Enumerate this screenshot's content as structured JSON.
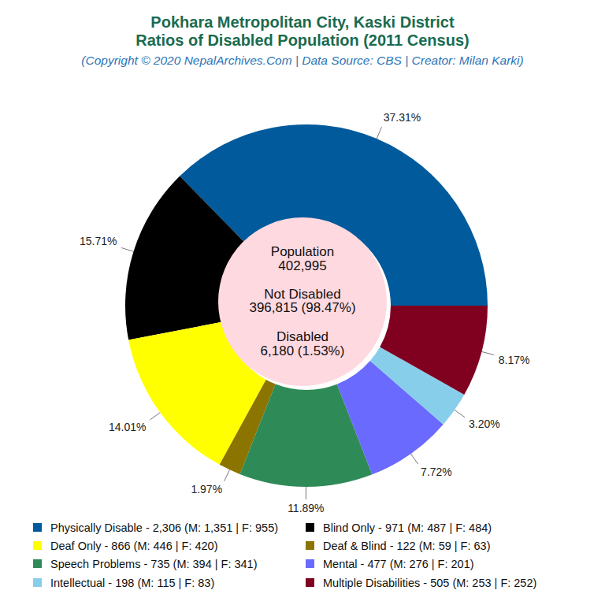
{
  "chart_data": {
    "type": "pie",
    "title": [
      "Pokhara Metropolitan City, Kaski District",
      "Ratios of Disabled Population (2011 Census)"
    ],
    "subtitle": "(Copyright © 2020 NepalArchives.Com | Data Source: CBS | Creator: Milan Karki)",
    "center_text": [
      "Population",
      "402,995",
      "Not Disabled",
      "396,815 (98.47%)",
      "Disabled",
      "6,180 (1.53%)"
    ],
    "categories": [
      "Physically Disable",
      "Blind Only",
      "Deaf Only",
      "Deaf & Blind",
      "Speech Problems",
      "Mental",
      "Intellectual",
      "Multiple Disabilities"
    ],
    "values": [
      37.31,
      15.71,
      14.01,
      1.97,
      11.89,
      7.72,
      3.2,
      8.17
    ],
    "value_labels": [
      "37.31%",
      "15.71%",
      "14.01%",
      "1.97%",
      "11.89%",
      "7.72%",
      "3.20%",
      "8.17%"
    ],
    "data_labels": true,
    "colors": [
      "#005a9c",
      "#000000",
      "#ffff00",
      "#8b7500",
      "#2e8b57",
      "#6a6aff",
      "#87ceeb",
      "#800020"
    ],
    "legend_labels": [
      "Physically Disable - 2,306 (M: 1,351 | F: 955)",
      "Blind Only - 971 (M: 487 | F: 484)",
      "Deaf Only - 866 (M: 446 | F: 420)",
      "Deaf & Blind - 122 (M: 59 | F: 63)",
      "Speech Problems - 735 (M: 394 | F: 341)",
      "Mental - 477 (M: 276 | F: 201)",
      "Intellectual - 198 (M: 115 | F: 83)",
      "Multiple Disabilities - 505 (M: 253 | F: 252)"
    ],
    "legend": "bottom"
  }
}
